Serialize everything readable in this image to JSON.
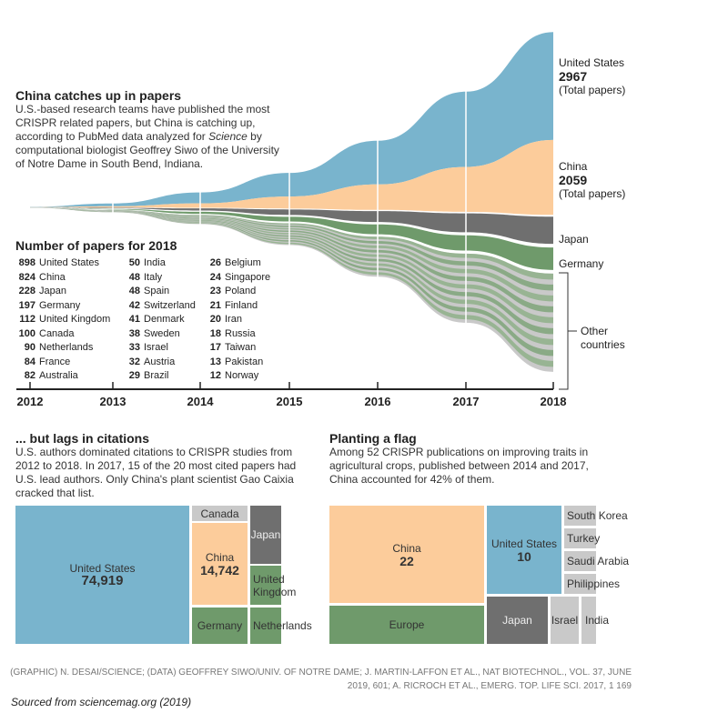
{
  "colors": {
    "us": "#79b4cd",
    "china": "#fccc9b",
    "japan": "#6f6f6f",
    "germany": "#6f9a6b",
    "other_green": "#7fa57a",
    "other_gray": "#c9c9c9"
  },
  "section1": {
    "title": "China catches up in papers",
    "desc_before": "U.S.-based research teams have published the most CRISPR related papers, but China is catching up, according to PubMed data analyzed for ",
    "desc_italic": "Science",
    "desc_after": " by computational biologist Geoffrey Siwo of the University of Notre Dame in South Bend, Indiana."
  },
  "table": {
    "title": "Number of papers for 2018",
    "columns": [
      [
        [
          "898",
          "United States"
        ],
        [
          "824",
          "China"
        ],
        [
          "228",
          "Japan"
        ],
        [
          "197",
          "Germany"
        ],
        [
          "112",
          "United Kingdom"
        ],
        [
          "100",
          "Canada"
        ],
        [
          "90",
          "Netherlands"
        ],
        [
          "84",
          "France"
        ],
        [
          "82",
          "Australia"
        ]
      ],
      [
        [
          "50",
          "India"
        ],
        [
          "48",
          "Italy"
        ],
        [
          "48",
          "Spain"
        ],
        [
          "42",
          "Switzerland"
        ],
        [
          "41",
          "Denmark"
        ],
        [
          "38",
          "Sweden"
        ],
        [
          "33",
          "Israel"
        ],
        [
          "32",
          "Austria"
        ],
        [
          "29",
          "Brazil"
        ]
      ],
      [
        [
          "26",
          "Belgium"
        ],
        [
          "24",
          "Singapore"
        ],
        [
          "23",
          "Poland"
        ],
        [
          "21",
          "Finland"
        ],
        [
          "20",
          "Iran"
        ],
        [
          "18",
          "Russia"
        ],
        [
          "17",
          "Taiwan"
        ],
        [
          "13",
          "Pakistan"
        ],
        [
          "12",
          "Norway"
        ]
      ]
    ]
  },
  "chart_data": [
    {
      "type": "area",
      "x": [
        2012,
        2013,
        2014,
        2015,
        2016,
        2017,
        2018
      ],
      "tick_labels": [
        "2012",
        "2013",
        "2014",
        "2015",
        "2016",
        "2017",
        "2018"
      ],
      "series": [
        {
          "name": "United States",
          "values": [
            10,
            80,
            300,
            650,
            1200,
            2069,
            2967
          ]
        },
        {
          "name": "China",
          "values": [
            3,
            30,
            120,
            330,
            700,
            1235,
            2059
          ]
        },
        {
          "name": "Japan",
          "values": [
            2,
            15,
            60,
            150,
            300,
            520,
            748
          ]
        },
        {
          "name": "Germany",
          "values": [
            2,
            15,
            55,
            130,
            270,
            420,
            617
          ]
        },
        {
          "name": "Other countries",
          "values": [
            5,
            60,
            250,
            600,
            1100,
            1900,
            2700
          ]
        }
      ],
      "labels": {
        "us_name": "United States",
        "us_total": "2967",
        "us_sub": "(Total papers)",
        "china_name": "China",
        "china_total": "2059",
        "china_sub": "(Total papers)",
        "japan": "Japan",
        "germany": "Germany",
        "other": "Other countries"
      }
    },
    {
      "type": "treemap",
      "title": "... but lags in citations",
      "desc": "U.S. authors dominated citations to CRISPR studies from 2012 to 2018. In 2017, 15 of the 20 most cited papers had U.S. lead authors. Only China's plant scientist Gao Caixia cracked that list.",
      "cells": [
        {
          "name": "United States",
          "value": "74,919"
        },
        {
          "name": "Canada"
        },
        {
          "name": "China",
          "value": "14,742"
        },
        {
          "name": "Germany"
        },
        {
          "name": "Japan"
        },
        {
          "name": "United Kingdom"
        },
        {
          "name": "Netherlands"
        }
      ]
    },
    {
      "type": "treemap",
      "title": "Planting a flag",
      "desc": "Among 52 CRISPR publications on improving traits in agricultural crops, published between 2014 and 2017, China accounted for 42% of them.",
      "cells": [
        {
          "name": "China",
          "value": "22"
        },
        {
          "name": "Europe"
        },
        {
          "name": "United States",
          "value": "10"
        },
        {
          "name": "Japan"
        },
        {
          "name": "Israel"
        },
        {
          "name": "India"
        },
        {
          "name": "South Korea"
        },
        {
          "name": "Turkey"
        },
        {
          "name": "Saudi Arabia"
        },
        {
          "name": "Philippines"
        }
      ]
    }
  ],
  "credit": {
    "l1": "(GRAPHIC) N. DESAI/SCIENCE; (DATA) GEOFFREY SIWO/UNIV. OF NOTRE DAME; J. MARTIN-LAFFON ET AL., NAT BIOTECHNOL., VOL. 37, JUNE",
    "l2": "2019, 601; A. RICROCH ET AL., EMERG. TOP. LIFE SCI. 2017, 1 169"
  },
  "source": "Sourced from sciencemag.org (2019)"
}
